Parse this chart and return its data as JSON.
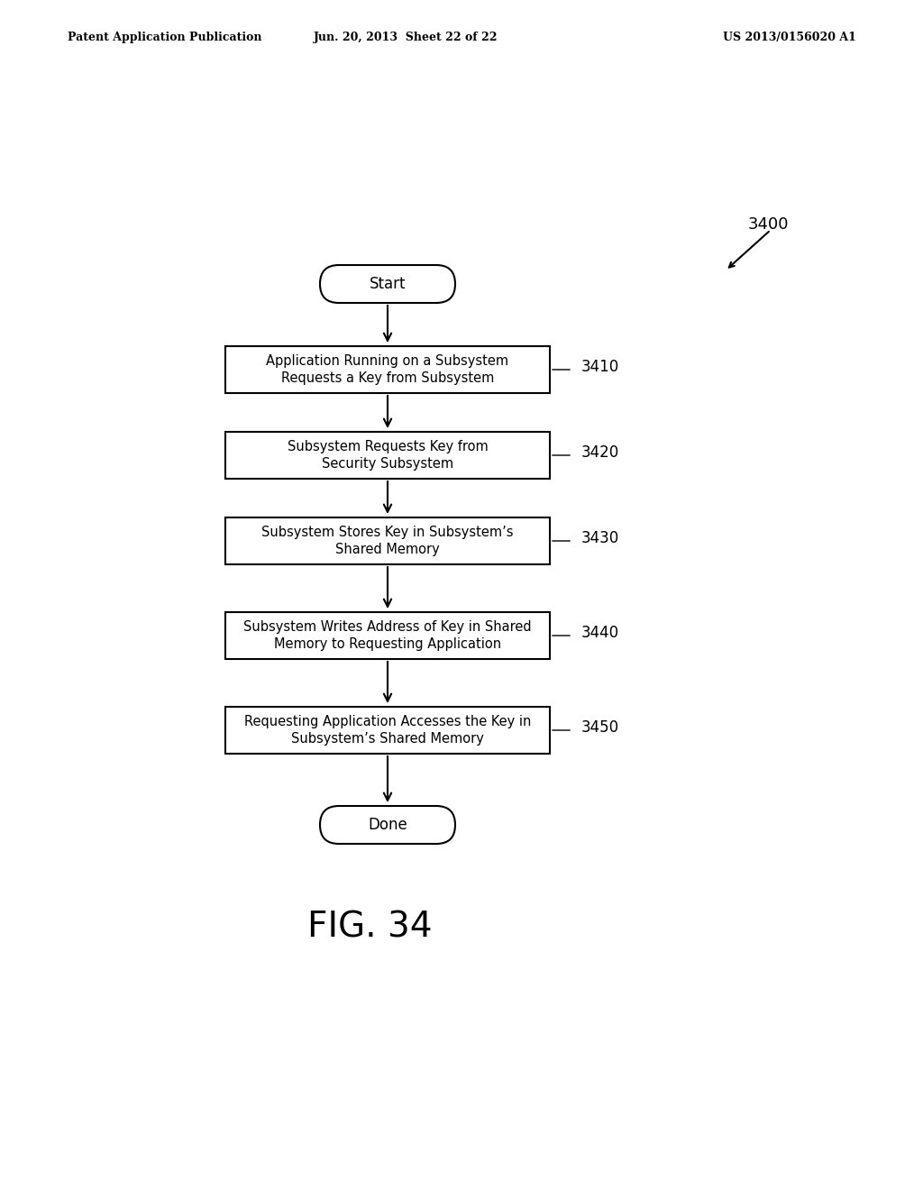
{
  "bg_color": "#ffffff",
  "header_left": "Patent Application Publication",
  "header_mid": "Jun. 20, 2013  Sheet 22 of 22",
  "header_right": "US 2013/0156020 A1",
  "fig_label": "FIG. 34",
  "diagram_label": "3400",
  "start_label": "Start",
  "done_label": "Done",
  "steps": [
    {
      "label": "3410",
      "text": "Application Running on a Subsystem\nRequests a Key from Subsystem"
    },
    {
      "label": "3420",
      "text": "Subsystem Requests Key from\nSecurity Subsystem"
    },
    {
      "label": "3430",
      "text": "Subsystem Stores Key in Subsystem’s\nShared Memory"
    },
    {
      "label": "3440",
      "text": "Subsystem Writes Address of Key in Shared\nMemory to Requesting Application"
    },
    {
      "label": "3450",
      "text": "Requesting Application Accesses the Key in\nSubsystem’s Shared Memory"
    }
  ]
}
